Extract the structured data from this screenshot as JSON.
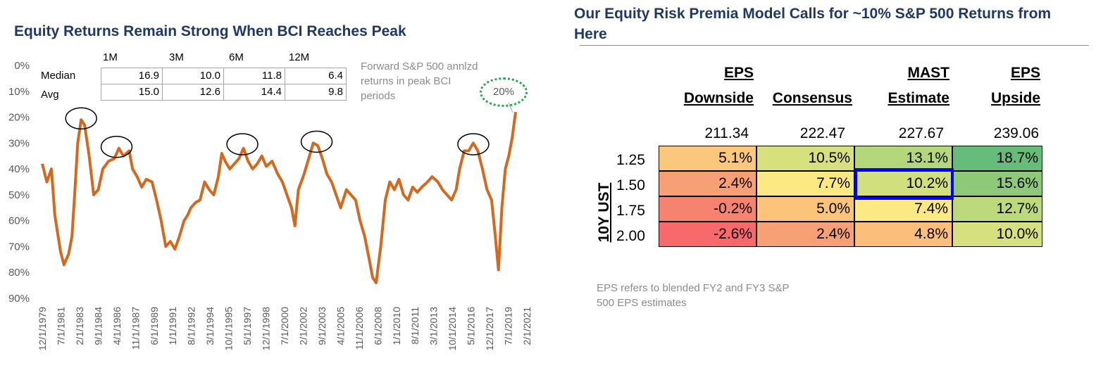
{
  "left_panel": {
    "title": "Equity Returns Remain Strong When BCI Reaches Peak",
    "stats_table": {
      "headers": [
        "1M",
        "3M",
        "6M",
        "12M"
      ],
      "rows": [
        {
          "label": "Median",
          "values": [
            "16.9",
            "10.0",
            "11.8",
            "6.4"
          ]
        },
        {
          "label": "Avg",
          "values": [
            "15.0",
            "12.6",
            "14.4",
            "9.8"
          ]
        }
      ]
    },
    "note": "Forward S&P 500 annlzd returns in peak BCI periods",
    "callout": "20%"
  },
  "chart_data": {
    "type": "line",
    "y_axis": {
      "labels": [
        "0%",
        "10%",
        "20%",
        "30%",
        "40%",
        "50%",
        "60%",
        "70%",
        "80%",
        "90%"
      ],
      "range": [
        0,
        90
      ],
      "inverted": true
    },
    "x_tick_labels": [
      "12/1/1979",
      "7/1/1981",
      "2/1/1983",
      "9/1/1984",
      "4/1/1986",
      "11/1/1987",
      "6/1/1989",
      "1/1/1991",
      "8/1/1992",
      "3/1/1994",
      "10/1/1995",
      "5/1/1997",
      "12/1/1998",
      "7/1/2000",
      "2/1/2002",
      "9/1/2003",
      "4/1/2005",
      "11/1/2006",
      "6/1/2008",
      "1/1/2010",
      "8/1/2011",
      "3/1/2013",
      "10/1/2014",
      "5/1/2016",
      "12/1/2017",
      "7/1/2019",
      "2/1/2021"
    ],
    "series": [
      {
        "color": "#d2691e",
        "points": [
          [
            1979.9,
            38
          ],
          [
            1980.3,
            45
          ],
          [
            1980.7,
            40
          ],
          [
            1981.0,
            58
          ],
          [
            1981.5,
            72
          ],
          [
            1981.8,
            77
          ],
          [
            1982.2,
            73
          ],
          [
            1982.5,
            66
          ],
          [
            1982.8,
            45
          ],
          [
            1983.0,
            30
          ],
          [
            1983.3,
            21
          ],
          [
            1983.6,
            23
          ],
          [
            1984.0,
            35
          ],
          [
            1984.4,
            50
          ],
          [
            1984.8,
            48
          ],
          [
            1985.2,
            40
          ],
          [
            1985.7,
            37
          ],
          [
            1986.2,
            36
          ],
          [
            1986.6,
            32
          ],
          [
            1987.0,
            35
          ],
          [
            1987.5,
            33
          ],
          [
            1987.8,
            40
          ],
          [
            1988.2,
            43
          ],
          [
            1988.6,
            47
          ],
          [
            1989.0,
            44
          ],
          [
            1989.5,
            45
          ],
          [
            1989.9,
            52
          ],
          [
            1990.3,
            60
          ],
          [
            1990.7,
            70
          ],
          [
            1991.1,
            68
          ],
          [
            1991.5,
            71
          ],
          [
            1991.9,
            66
          ],
          [
            1992.3,
            60
          ],
          [
            1992.6,
            58
          ],
          [
            1992.9,
            55
          ],
          [
            1993.3,
            53
          ],
          [
            1993.7,
            52
          ],
          [
            1994.1,
            45
          ],
          [
            1994.5,
            48
          ],
          [
            1994.9,
            50
          ],
          [
            1995.3,
            43
          ],
          [
            1995.6,
            34
          ],
          [
            1995.9,
            37
          ],
          [
            1996.3,
            40
          ],
          [
            1996.7,
            38
          ],
          [
            1997.1,
            36
          ],
          [
            1997.5,
            32
          ],
          [
            1997.9,
            37
          ],
          [
            1998.3,
            40
          ],
          [
            1998.7,
            38
          ],
          [
            1999.1,
            35
          ],
          [
            1999.5,
            39
          ],
          [
            2000.0,
            37
          ],
          [
            2000.5,
            42
          ],
          [
            2000.9,
            45
          ],
          [
            2001.3,
            50
          ],
          [
            2001.7,
            55
          ],
          [
            2002.0,
            62
          ],
          [
            2002.3,
            48
          ],
          [
            2002.8,
            42
          ],
          [
            2003.2,
            36
          ],
          [
            2003.6,
            30
          ],
          [
            2004.0,
            31
          ],
          [
            2004.4,
            36
          ],
          [
            2004.8,
            42
          ],
          [
            2005.2,
            45
          ],
          [
            2005.6,
            50
          ],
          [
            2006.0,
            55
          ],
          [
            2006.5,
            48
          ],
          [
            2006.9,
            50
          ],
          [
            2007.3,
            52
          ],
          [
            2007.7,
            60
          ],
          [
            2008.1,
            66
          ],
          [
            2008.5,
            75
          ],
          [
            2008.8,
            82
          ],
          [
            2009.1,
            84
          ],
          [
            2009.5,
            70
          ],
          [
            2009.9,
            52
          ],
          [
            2010.3,
            45
          ],
          [
            2010.7,
            48
          ],
          [
            2011.1,
            44
          ],
          [
            2011.5,
            50
          ],
          [
            2011.9,
            52
          ],
          [
            2012.3,
            47
          ],
          [
            2012.7,
            49
          ],
          [
            2013.1,
            47
          ],
          [
            2013.6,
            45
          ],
          [
            2014.0,
            43
          ],
          [
            2014.5,
            45
          ],
          [
            2014.9,
            48
          ],
          [
            2015.3,
            50
          ],
          [
            2015.7,
            52
          ],
          [
            2016.1,
            48
          ],
          [
            2016.4,
            40
          ],
          [
            2016.8,
            33
          ],
          [
            2017.2,
            33
          ],
          [
            2017.6,
            30
          ],
          [
            2018.0,
            33
          ],
          [
            2018.4,
            40
          ],
          [
            2018.8,
            48
          ],
          [
            2019.2,
            52
          ],
          [
            2019.5,
            65
          ],
          [
            2019.8,
            79
          ],
          [
            2020.1,
            55
          ],
          [
            2020.4,
            40
          ],
          [
            2020.7,
            35
          ],
          [
            2021.0,
            28
          ],
          [
            2021.3,
            18
          ]
        ]
      }
    ]
  },
  "right_panel": {
    "title": "Our Equity Risk Premia Model Calls for ~10% S&P 500 Returns from Here",
    "columns": [
      {
        "line1": "EPS",
        "line2": "Downside",
        "value": "211.34"
      },
      {
        "line1": "",
        "line2": "Consensus",
        "value": "222.47"
      },
      {
        "line1": "MAST",
        "line2": "Estimate",
        "value": "227.67"
      },
      {
        "line1": "EPS",
        "line2": "Upside",
        "value": "239.06"
      }
    ],
    "row_axis_label": "10Y UST",
    "rows": [
      {
        "rate": "1.25",
        "cells": [
          "5.1%",
          "10.5%",
          "13.1%",
          "18.7%"
        ],
        "colors": [
          "#fac77d",
          "#d6e07c",
          "#b4d77b",
          "#66bc7a"
        ]
      },
      {
        "rate": "1.50",
        "cells": [
          "2.4%",
          "7.7%",
          "10.2%",
          "15.6%"
        ],
        "colors": [
          "#f8a075",
          "#fde983",
          "#d2df7d",
          "#8ec97a"
        ]
      },
      {
        "rate": "1.75",
        "cells": [
          "-0.2%",
          "5.0%",
          "7.4%",
          "12.7%"
        ],
        "colors": [
          "#f6836f",
          "#fcc47b",
          "#fde983",
          "#bcd97c"
        ]
      },
      {
        "rate": "2.00",
        "cells": [
          "-2.6%",
          "2.4%",
          "4.8%",
          "10.0%"
        ],
        "colors": [
          "#f8696b",
          "#f8a075",
          "#fcbf7b",
          "#d6e07e"
        ]
      }
    ],
    "highlighted_cell": "10.2%",
    "footnote": "EPS refers to blended FY2 and FY3 S&P 500 EPS estimates"
  }
}
